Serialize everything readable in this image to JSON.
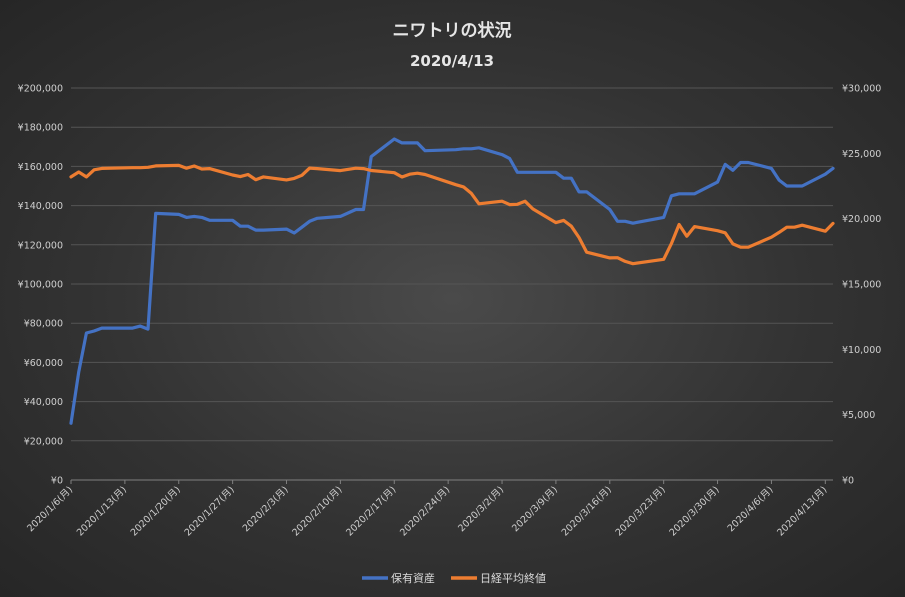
{
  "chart_data": {
    "type": "line",
    "title": "ニワトリの状況",
    "subtitle": "2020/4/13",
    "x_tick_labels": [
      "2020/1/6(月)",
      "2020/1/13(月)",
      "2020/1/20(月)",
      "2020/1/27(月)",
      "2020/2/3(月)",
      "2020/2/10(月)",
      "2020/2/17(月)",
      "2020/2/24(月)",
      "2020/3/2(月)",
      "2020/3/9(月)",
      "2020/3/16(月)",
      "2020/3/23(月)",
      "2020/3/30(月)",
      "2020/4/6(月)",
      "2020/4/13(月)"
    ],
    "x_range": [
      "2020-01-06",
      "2020-04-14"
    ],
    "y_left_ticks": [
      "¥0",
      "¥20,000",
      "¥40,000",
      "¥60,000",
      "¥80,000",
      "¥100,000",
      "¥120,000",
      "¥140,000",
      "¥160,000",
      "¥180,000",
      "¥200,000"
    ],
    "y_right_ticks": [
      "¥0",
      "¥5,000",
      "¥10,000",
      "¥15,000",
      "¥20,000",
      "¥25,000",
      "¥30,000"
    ],
    "ylim_left": [
      0,
      200000
    ],
    "ylim_right": [
      0,
      30000
    ],
    "legend_position": "bottom",
    "series": [
      {
        "name": "保有資産",
        "axis": "left",
        "color": "#4472C4",
        "points": [
          [
            "2020-01-06",
            29000
          ],
          [
            "2020-01-07",
            55000
          ],
          [
            "2020-01-08",
            75000
          ],
          [
            "2020-01-09",
            76000
          ],
          [
            "2020-01-10",
            77500
          ],
          [
            "2020-01-14",
            77500
          ],
          [
            "2020-01-15",
            78500
          ],
          [
            "2020-01-16",
            77000
          ],
          [
            "2020-01-17",
            136000
          ],
          [
            "2020-01-20",
            135500
          ],
          [
            "2020-01-21",
            134000
          ],
          [
            "2020-01-22",
            134500
          ],
          [
            "2020-01-23",
            134000
          ],
          [
            "2020-01-24",
            132500
          ],
          [
            "2020-01-27",
            132500
          ],
          [
            "2020-01-28",
            129500
          ],
          [
            "2020-01-29",
            129500
          ],
          [
            "2020-01-30",
            127500
          ],
          [
            "2020-01-31",
            127500
          ],
          [
            "2020-02-03",
            128000
          ],
          [
            "2020-02-04",
            126000
          ],
          [
            "2020-02-05",
            129000
          ],
          [
            "2020-02-06",
            132000
          ],
          [
            "2020-02-07",
            133500
          ],
          [
            "2020-02-10",
            134500
          ],
          [
            "2020-02-12",
            138000
          ],
          [
            "2020-02-13",
            138000
          ],
          [
            "2020-02-14",
            165000
          ],
          [
            "2020-02-17",
            174000
          ],
          [
            "2020-02-18",
            172000
          ],
          [
            "2020-02-19",
            172000
          ],
          [
            "2020-02-20",
            172000
          ],
          [
            "2020-02-21",
            168000
          ],
          [
            "2020-02-25",
            168500
          ],
          [
            "2020-02-26",
            169000
          ],
          [
            "2020-02-27",
            169000
          ],
          [
            "2020-02-28",
            169500
          ],
          [
            "2020-03-02",
            166000
          ],
          [
            "2020-03-03",
            164000
          ],
          [
            "2020-03-04",
            157000
          ],
          [
            "2020-03-05",
            157000
          ],
          [
            "2020-03-06",
            157000
          ],
          [
            "2020-03-09",
            157000
          ],
          [
            "2020-03-10",
            154000
          ],
          [
            "2020-03-11",
            154000
          ],
          [
            "2020-03-12",
            147000
          ],
          [
            "2020-03-13",
            147000
          ],
          [
            "2020-03-16",
            138000
          ],
          [
            "2020-03-17",
            132000
          ],
          [
            "2020-03-18",
            132000
          ],
          [
            "2020-03-19",
            131000
          ],
          [
            "2020-03-23",
            134000
          ],
          [
            "2020-03-24",
            145000
          ],
          [
            "2020-03-25",
            146000
          ],
          [
            "2020-03-26",
            146000
          ],
          [
            "2020-03-27",
            146000
          ],
          [
            "2020-03-30",
            152000
          ],
          [
            "2020-03-31",
            161000
          ],
          [
            "2020-04-01",
            158000
          ],
          [
            "2020-04-02",
            162000
          ],
          [
            "2020-04-03",
            162000
          ],
          [
            "2020-04-06",
            159000
          ],
          [
            "2020-04-07",
            153000
          ],
          [
            "2020-04-08",
            150000
          ],
          [
            "2020-04-09",
            150000
          ],
          [
            "2020-04-10",
            150000
          ],
          [
            "2020-04-13",
            156000
          ],
          [
            "2020-04-14",
            159000
          ]
        ]
      },
      {
        "name": "日経平均終値",
        "axis": "right",
        "color": "#ED7D31",
        "points": [
          [
            "2020-01-06",
            23200
          ],
          [
            "2020-01-07",
            23575
          ],
          [
            "2020-01-08",
            23200
          ],
          [
            "2020-01-09",
            23740
          ],
          [
            "2020-01-10",
            23850
          ],
          [
            "2020-01-14",
            23900
          ],
          [
            "2020-01-15",
            23900
          ],
          [
            "2020-01-16",
            23930
          ],
          [
            "2020-01-17",
            24040
          ],
          [
            "2020-01-20",
            24080
          ],
          [
            "2020-01-21",
            23860
          ],
          [
            "2020-01-22",
            24030
          ],
          [
            "2020-01-23",
            23800
          ],
          [
            "2020-01-24",
            23830
          ],
          [
            "2020-01-27",
            23340
          ],
          [
            "2020-01-28",
            23220
          ],
          [
            "2020-01-29",
            23380
          ],
          [
            "2020-01-30",
            22980
          ],
          [
            "2020-01-31",
            23200
          ],
          [
            "2020-02-03",
            22970
          ],
          [
            "2020-02-04",
            23080
          ],
          [
            "2020-02-05",
            23320
          ],
          [
            "2020-02-06",
            23870
          ],
          [
            "2020-02-07",
            23830
          ],
          [
            "2020-02-10",
            23680
          ],
          [
            "2020-02-12",
            23860
          ],
          [
            "2020-02-13",
            23830
          ],
          [
            "2020-02-14",
            23690
          ],
          [
            "2020-02-17",
            23520
          ],
          [
            "2020-02-18",
            23190
          ],
          [
            "2020-02-19",
            23400
          ],
          [
            "2020-02-20",
            23480
          ],
          [
            "2020-02-21",
            23380
          ],
          [
            "2020-02-25",
            22600
          ],
          [
            "2020-02-26",
            22430
          ],
          [
            "2020-02-27",
            21950
          ],
          [
            "2020-02-28",
            21140
          ],
          [
            "2020-03-02",
            21340
          ],
          [
            "2020-03-03",
            21080
          ],
          [
            "2020-03-04",
            21100
          ],
          [
            "2020-03-05",
            21330
          ],
          [
            "2020-03-06",
            20750
          ],
          [
            "2020-03-09",
            19700
          ],
          [
            "2020-03-10",
            19870
          ],
          [
            "2020-03-11",
            19420
          ],
          [
            "2020-03-12",
            18560
          ],
          [
            "2020-03-13",
            17430
          ],
          [
            "2020-03-16",
            17000
          ],
          [
            "2020-03-17",
            17010
          ],
          [
            "2020-03-18",
            16730
          ],
          [
            "2020-03-19",
            16550
          ],
          [
            "2020-03-23",
            16890
          ],
          [
            "2020-03-24",
            18090
          ],
          [
            "2020-03-25",
            19550
          ],
          [
            "2020-03-26",
            18660
          ],
          [
            "2020-03-27",
            19390
          ],
          [
            "2020-03-30",
            19080
          ],
          [
            "2020-03-31",
            18920
          ],
          [
            "2020-04-01",
            18070
          ],
          [
            "2020-04-02",
            17820
          ],
          [
            "2020-04-03",
            17820
          ],
          [
            "2020-04-06",
            18580
          ],
          [
            "2020-04-07",
            18950
          ],
          [
            "2020-04-08",
            19350
          ],
          [
            "2020-04-09",
            19350
          ],
          [
            "2020-04-10",
            19500
          ],
          [
            "2020-04-13",
            19040
          ],
          [
            "2020-04-14",
            19640
          ]
        ]
      }
    ]
  }
}
